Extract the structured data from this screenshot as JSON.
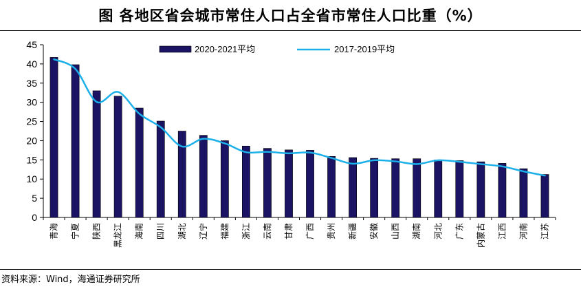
{
  "header": {
    "title": "图 各地区省会城市常住人口占全省市常住人口比重（%）"
  },
  "footer": {
    "source": "资料来源：Wind，海通证券研究所"
  },
  "colors": {
    "bar": "#1b1464",
    "line": "#1bb0ea"
  },
  "chart_data": {
    "type": "bar",
    "title": "图 各地区省会城市常住人口占全省市常住人口比重（%）",
    "xlabel": "",
    "ylabel": "",
    "ylim": [
      0,
      45
    ],
    "yticks": [
      0,
      5,
      10,
      15,
      20,
      25,
      30,
      35,
      40,
      45
    ],
    "grid": false,
    "legend_position": "top-right",
    "categories": [
      "青海",
      "宁夏",
      "陕西",
      "黑龙江",
      "海南",
      "四川",
      "湖北",
      "辽宁",
      "福建",
      "浙江",
      "云南",
      "甘肃",
      "广西",
      "贵州",
      "新疆",
      "安徽",
      "山西",
      "湖南",
      "河北",
      "广东",
      "内蒙古",
      "江西",
      "河南",
      "江苏"
    ],
    "series": [
      {
        "name": "2020-2021平均",
        "type": "bar",
        "values": [
          41.7,
          39.8,
          33.0,
          31.6,
          28.5,
          25.1,
          22.5,
          21.4,
          20.0,
          18.6,
          18.0,
          17.6,
          17.5,
          15.9,
          15.6,
          15.4,
          15.3,
          15.3,
          15.0,
          14.8,
          14.5,
          14.1,
          12.7,
          11.2
        ]
      },
      {
        "name": "2017-2019平均",
        "type": "line",
        "values": [
          41.2,
          38.7,
          30.1,
          32.7,
          27.0,
          23.5,
          18.5,
          20.5,
          19.3,
          17.0,
          17.1,
          16.7,
          16.9,
          15.5,
          14.0,
          14.9,
          14.6,
          13.9,
          14.9,
          14.5,
          13.9,
          13.3,
          12.0,
          10.9
        ]
      }
    ]
  }
}
